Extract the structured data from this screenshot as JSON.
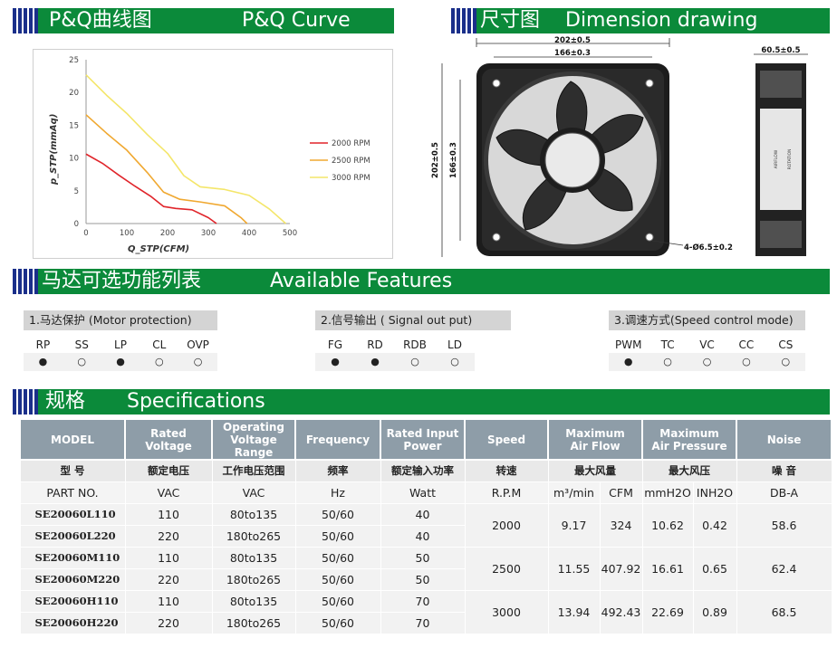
{
  "pq_section": {
    "title_cn": "P&Q曲线图",
    "title_en": "P&Q Curve"
  },
  "dim_section": {
    "title_cn": "尺寸图",
    "title_en": "Dimension drawing"
  },
  "features_section": {
    "title_cn": "马达可选功能列表",
    "title_en": "Available Features"
  },
  "spec_section": {
    "title_cn": "规格",
    "title_en": "Specifications"
  },
  "chart_data": {
    "type": "line",
    "xlabel": "Q_STP(CFM)",
    "ylabel": "p_STP(mmAq)",
    "xlim": [
      0,
      500
    ],
    "ylim": [
      0,
      25
    ],
    "x_ticks": [
      "0",
      "100",
      "200",
      "300",
      "400",
      "500"
    ],
    "y_ticks": [
      "0",
      "5",
      "10",
      "15",
      "20",
      "25"
    ],
    "legend_position": "right",
    "grid": false,
    "series": [
      {
        "name": "2000 RPM",
        "color": "#e0242a",
        "x": [
          0,
          40,
          80,
          120,
          160,
          190,
          220,
          260,
          300,
          320
        ],
        "y": [
          10.6,
          9.2,
          7.4,
          5.7,
          4.1,
          2.6,
          2.3,
          2.1,
          0.9,
          0
        ]
      },
      {
        "name": "2500 RPM",
        "color": "#f0a830",
        "x": [
          0,
          50,
          100,
          150,
          190,
          230,
          280,
          340,
          380,
          395
        ],
        "y": [
          16.6,
          13.8,
          11.2,
          7.8,
          4.8,
          3.7,
          3.3,
          2.7,
          0.9,
          0
        ]
      },
      {
        "name": "3000 RPM",
        "color": "#f4e66a",
        "x": [
          0,
          50,
          100,
          150,
          200,
          240,
          280,
          340,
          400,
          450,
          490
        ],
        "y": [
          22.7,
          19.6,
          16.8,
          13.6,
          10.7,
          7.3,
          5.6,
          5.2,
          4.3,
          2.2,
          0
        ]
      }
    ]
  },
  "dimensions": {
    "overall_width": "202±0.5",
    "hole_width": "166±0.3",
    "overall_height": "202±0.5",
    "hole_height": "166±0.3",
    "depth": "60.5±0.5",
    "holes": "4-Ø6.5±0.2",
    "side_label_a": "AIRFLOW",
    "side_label_b": "ROTATION"
  },
  "features": {
    "motor_protection": {
      "title": "1.马达保护 (Motor protection)",
      "codes": [
        "RP",
        "SS",
        "LP",
        "CL",
        "OVP"
      ],
      "marks": [
        "●",
        "○",
        "●",
        "○",
        "○"
      ]
    },
    "signal_output": {
      "title": "2.信号输出 ( Signal out put)",
      "codes": [
        "FG",
        "RD",
        "RDB",
        "LD"
      ],
      "marks": [
        "●",
        "●",
        "○",
        "○"
      ]
    },
    "speed_control": {
      "title": "3.调速方式(Speed control mode)",
      "codes": [
        "PWM",
        "TC",
        "VC",
        "CC",
        "CS"
      ],
      "marks": [
        "●",
        "○",
        "○",
        "○",
        "○"
      ]
    }
  },
  "specs": {
    "headers": {
      "model": "MODEL",
      "rated_voltage_1": "Rated",
      "rated_voltage_2": "Voltage",
      "operating_1": "Operating",
      "operating_2": "Voltage Range",
      "frequency": "Frequency",
      "power_1": "Rated Input",
      "power_2": "Power",
      "speed": "Speed",
      "airflow_1": "Maximum",
      "airflow_2": "Air Flow",
      "pressure_1": "Maximum",
      "pressure_2": "Air Pressure",
      "noise": "Noise"
    },
    "headers_cn": {
      "model": "型 号",
      "rated_voltage": "额定电压",
      "operating": "工作电压范围",
      "frequency": "频率",
      "power": "额定输入功率",
      "speed": "转速",
      "airflow": "最大风量",
      "pressure": "最大风压",
      "noise": "噪 音"
    },
    "units": {
      "part": "PART NO.",
      "rated_voltage": "VAC",
      "operating": "VAC",
      "frequency": "Hz",
      "power": "Watt",
      "speed": "R.P.M",
      "airflow_m3": "m³/min",
      "airflow_cfm": "CFM",
      "pressure_mm": "mmH2O",
      "pressure_inh": "INH2O",
      "noise": "DB-A"
    },
    "rows": [
      {
        "part": "SE20060L110",
        "voltage": "110",
        "range": "80to135",
        "freq": "50/60",
        "power": "40"
      },
      {
        "part": "SE20060L220",
        "voltage": "220",
        "range": "180to265",
        "freq": "50/60",
        "power": "40"
      },
      {
        "part": "SE20060M110",
        "voltage": "110",
        "range": "80to135",
        "freq": "50/60",
        "power": "50"
      },
      {
        "part": "SE20060M220",
        "voltage": "220",
        "range": "180to265",
        "freq": "50/60",
        "power": "50"
      },
      {
        "part": "SE20060H110",
        "voltage": "110",
        "range": "80to135",
        "freq": "50/60",
        "power": "70"
      },
      {
        "part": "SE20060H220",
        "voltage": "220",
        "range": "180to265",
        "freq": "50/60",
        "power": "70"
      }
    ],
    "groups": [
      {
        "speed": "2000",
        "m3": "9.17",
        "cfm": "324",
        "mmh2o": "10.62",
        "inh2o": "0.42",
        "noise": "58.6"
      },
      {
        "speed": "2500",
        "m3": "11.55",
        "cfm": "407.92",
        "mmh2o": "16.61",
        "inh2o": "0.65",
        "noise": "62.4"
      },
      {
        "speed": "3000",
        "m3": "13.94",
        "cfm": "492.43",
        "mmh2o": "22.69",
        "inh2o": "0.89",
        "noise": "68.5"
      }
    ]
  }
}
